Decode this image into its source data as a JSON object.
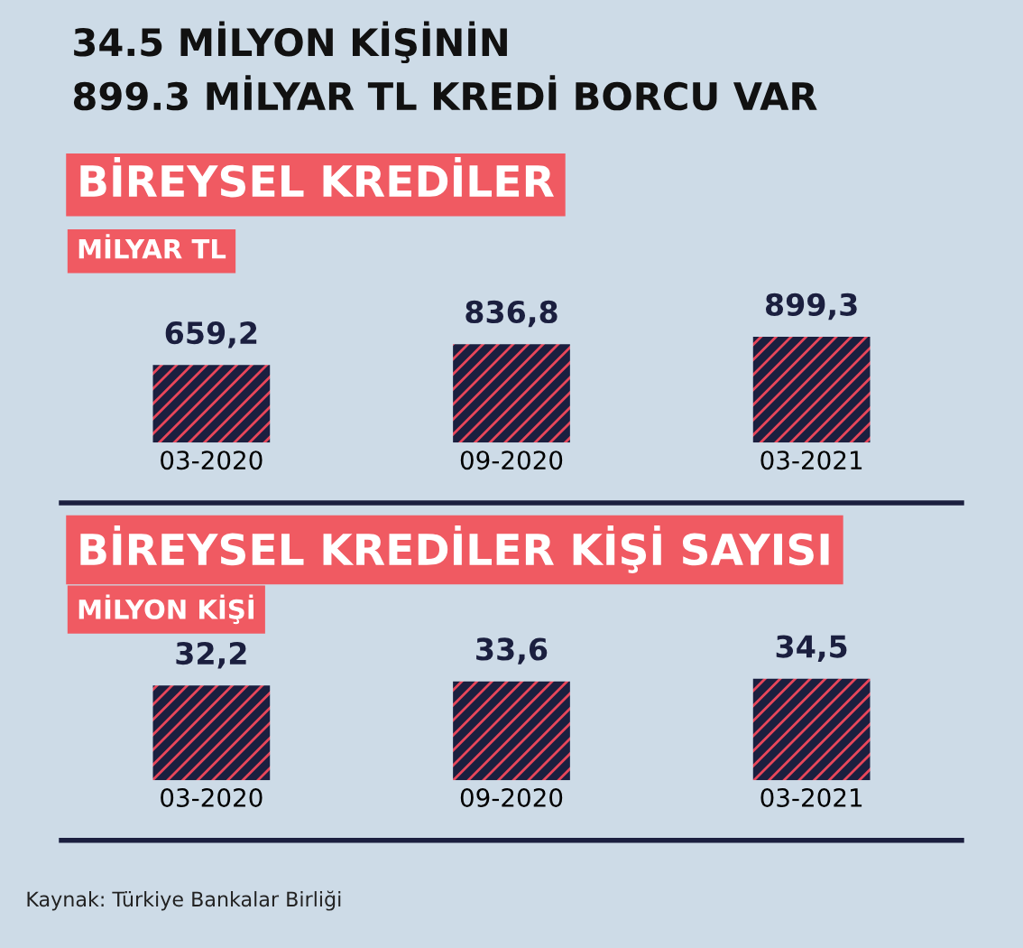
{
  "chart_data": [
    {
      "type": "bar",
      "title": "BİREYSEL KREDİLER",
      "subtitle": "MİLYAR TL",
      "categories": [
        "03-2020",
        "09-2020",
        "03-2021"
      ],
      "values": [
        659.2,
        836.8,
        899.3
      ],
      "value_labels": [
        "659,2",
        "836,8",
        "899,3"
      ],
      "color": "#1b1f3f",
      "tick_labels": "x",
      "annotations": [
        "34.5 MİLYON KİŞİNİN",
        "899.3 MİLYAR TL KREDİ BORCU VAR"
      ]
    },
    {
      "type": "bar",
      "title": "BİREYSEL KREDİLER KİŞİ SAYISI",
      "subtitle": "MİLYON KİŞİ",
      "categories": [
        "03-2020",
        "09-2020",
        "03-2021"
      ],
      "values": [
        32.2,
        33.6,
        34.5
      ],
      "value_labels": [
        "32,2",
        "33,6",
        "34,5"
      ],
      "color": "#1b1f3f",
      "tick_labels": "x",
      "annotations": [
        "Kaynak: Türkiye Bankalar Birliği"
      ]
    }
  ]
}
